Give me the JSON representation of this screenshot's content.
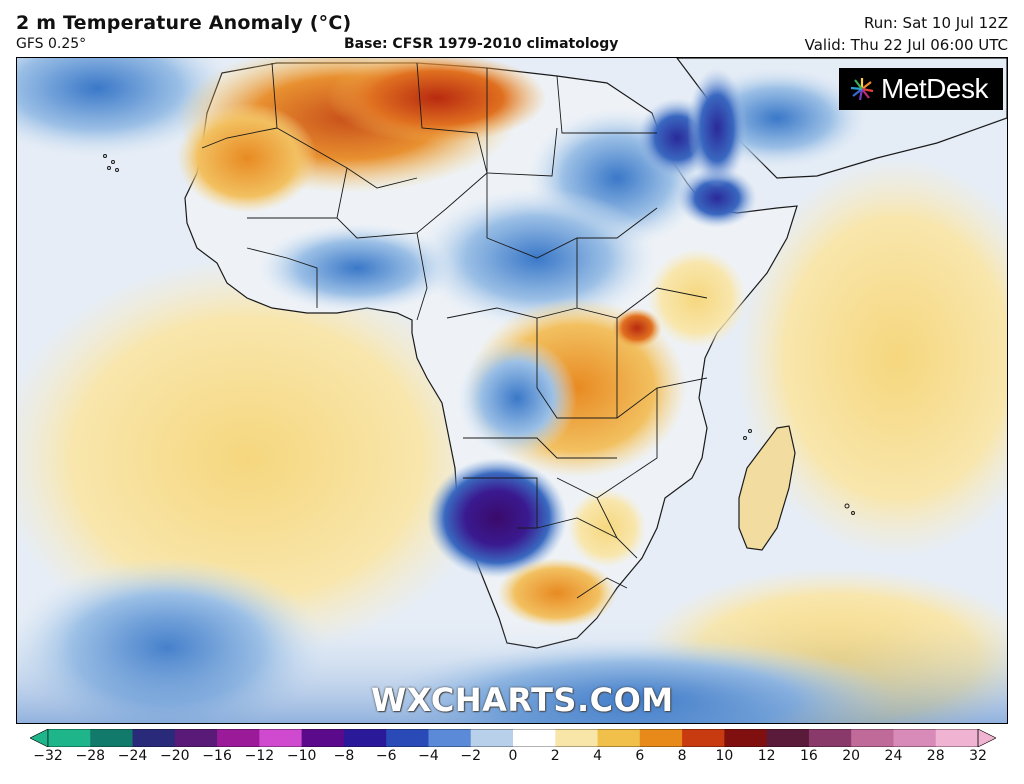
{
  "header": {
    "title": "2 m Temperature Anomaly (°C)",
    "model": "GFS 0.25°",
    "base": "Base: CFSR 1979-2010 climatology",
    "run": "Run: Sat 10 Jul 12Z",
    "valid": "Valid: Thu 22 Jul 06:00 UTC"
  },
  "branding": {
    "logo_text": "MetDesk",
    "watermark": "WXCHARTS.COM"
  },
  "colorbar": {
    "ticks": [
      "−32",
      "−28",
      "−24",
      "−20",
      "−16",
      "−12",
      "−10",
      "−8",
      "−6",
      "−4",
      "−2",
      "0",
      "2",
      "4",
      "6",
      "8",
      "10",
      "12",
      "16",
      "20",
      "24",
      "28",
      "32"
    ],
    "colors": [
      "#1fb58a",
      "#127a6a",
      "#2a2a7a",
      "#5a1a78",
      "#9a1a9a",
      "#d04ad0",
      "#5a0a8a",
      "#2a1a9a",
      "#2a4ab8",
      "#5a8ad8",
      "#b8d0ea",
      "#ffffff",
      "#f8e6a8",
      "#f0c04a",
      "#e88a1a",
      "#c83a10",
      "#801010",
      "#5a1a3a",
      "#8a3a6a",
      "#c06a9a",
      "#d88ab8",
      "#f0b4d2"
    ]
  },
  "map": {
    "land_border": "#1a1a1a",
    "sea_base": "#e6edf6"
  }
}
